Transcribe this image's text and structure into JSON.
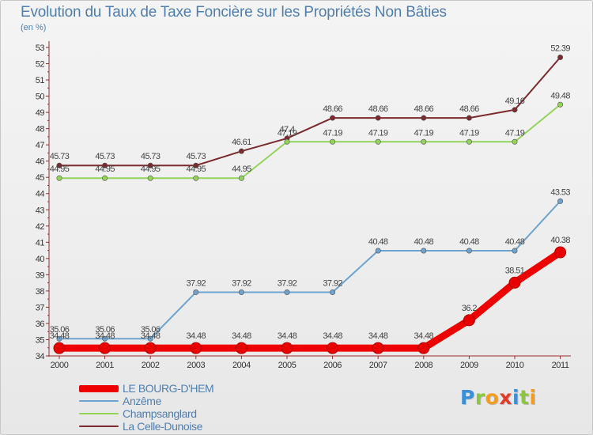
{
  "header": {
    "title": "Evolution du Taux de Taxe Foncière sur les Propriétés Non Bâties",
    "unit": "(en %)"
  },
  "logo": {
    "text": "Proxiti",
    "letters": [
      {
        "char": "P",
        "color": "#3a8fd6"
      },
      {
        "char": "r",
        "color": "#8cc63f"
      },
      {
        "char": "o",
        "color": "#f39c1f"
      },
      {
        "char": "x",
        "color": "#e23a2b"
      },
      {
        "char": "i",
        "color": "#3a8fd6"
      },
      {
        "char": "t",
        "color": "#8cc63f"
      },
      {
        "char": "i",
        "color": "#f39c1f"
      }
    ]
  },
  "chart_data": {
    "type": "line",
    "title": "Evolution du Taux de Taxe Foncière sur les Propriétés Non Bâties",
    "ylabel": "(en %)",
    "xlabel": "",
    "ylim": [
      34,
      53
    ],
    "yticks": [
      34,
      35,
      36,
      37,
      38,
      39,
      40,
      41,
      42,
      43,
      44,
      45,
      46,
      47,
      48,
      49,
      50,
      51,
      52,
      53
    ],
    "categories": [
      "2000",
      "2001",
      "2002",
      "2003",
      "2004",
      "2005",
      "2006",
      "2007",
      "2008",
      "2009",
      "2010",
      "2011"
    ],
    "grid": false,
    "legend_position": "bottom-left",
    "series": [
      {
        "name": "La Celle-Dunoise",
        "color": "#7b2a2e",
        "values": [
          45.73,
          45.73,
          45.73,
          45.73,
          46.61,
          47.4,
          48.66,
          48.66,
          48.66,
          48.66,
          49.16,
          52.39
        ],
        "labels": [
          "45.73",
          "45.73",
          "45.73",
          "45.73",
          "46.61",
          "47.4",
          "48.66",
          "48.66",
          "48.66",
          "48.66",
          "49.16",
          "52.39"
        ]
      },
      {
        "name": "Champsanglard",
        "color": "#93d35a",
        "values": [
          44.95,
          44.95,
          44.95,
          44.95,
          44.95,
          47.19,
          47.19,
          47.19,
          47.19,
          47.19,
          47.19,
          49.48
        ],
        "labels": [
          "44.95",
          "44.95",
          "44.95",
          "44.95",
          "44.95",
          "47.19",
          "47.19",
          "47.19",
          "47.19",
          "47.19",
          "47.19",
          "49.48"
        ]
      },
      {
        "name": "Anzême",
        "color": "#6fa3cf",
        "values": [
          35.06,
          35.06,
          35.06,
          37.92,
          37.92,
          37.92,
          37.92,
          40.48,
          40.48,
          40.48,
          40.48,
          43.53
        ],
        "labels": [
          "35.06",
          "35.06",
          "35.06",
          "37.92",
          "37.92",
          "37.92",
          "37.92",
          "40.48",
          "40.48",
          "40.48",
          "40.48",
          "43.53"
        ]
      },
      {
        "name": "LE BOURG-D'HEM",
        "color": "#ee0000",
        "values": [
          34.48,
          34.48,
          34.48,
          34.48,
          34.48,
          34.48,
          34.48,
          34.48,
          34.48,
          36.2,
          38.51,
          40.38
        ],
        "labels": [
          "34.48",
          "34.48",
          "34.48",
          "34.48",
          "34.48",
          "34.48",
          "34.48",
          "34.48",
          "34.48",
          "36.2",
          "38.51",
          "40.38"
        ]
      }
    ],
    "legend_order": [
      "LE BOURG-D'HEM",
      "Anzême",
      "Champsanglard",
      "La Celle-Dunoise"
    ]
  }
}
